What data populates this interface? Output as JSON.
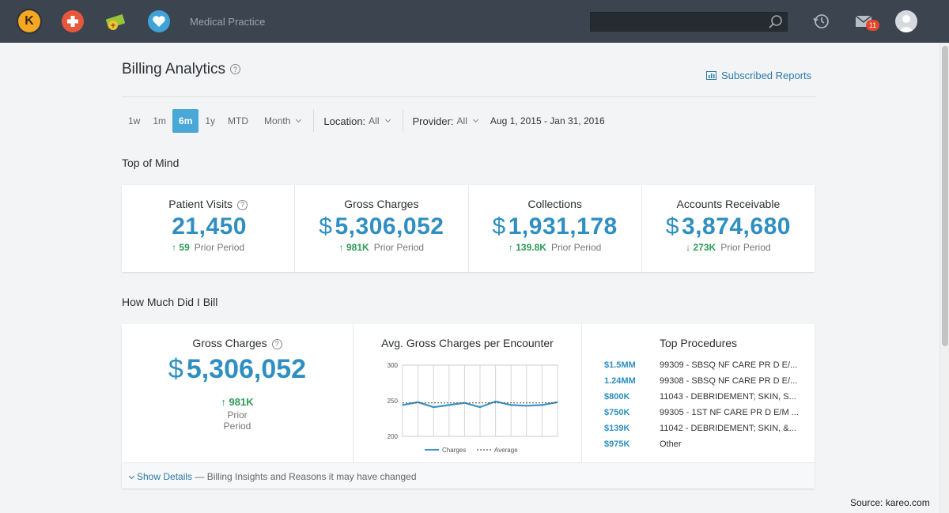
{
  "nav": {
    "practice": "Medical Practice",
    "search": {
      "placeholder": ""
    },
    "mail_count": "11",
    "k_logo": "K"
  },
  "header": {
    "title": "Billing Analytics",
    "help": "?",
    "subscribed_label": "Subscribed Reports"
  },
  "filters": {
    "periods": [
      "1w",
      "1m",
      "6m",
      "1y",
      "MTD"
    ],
    "active_period": "6m",
    "granularity": "Month",
    "location_label": "Location:",
    "location_value": "All",
    "provider_label": "Provider:",
    "provider_value": "All",
    "date_range": "Aug 1, 2015 - Jan 31, 2016"
  },
  "top_of_mind": {
    "title": "Top of Mind",
    "metrics": [
      {
        "label": "Patient Visits",
        "currency": "",
        "value": "21,450",
        "delta": "↑ 59",
        "delta_label": "Prior Period"
      },
      {
        "label": "Gross Charges",
        "currency": "$",
        "value": "5,306,052",
        "delta": "↑ 981K",
        "delta_label": "Prior Period"
      },
      {
        "label": "Collections",
        "currency": "$",
        "value": "1,931,178",
        "delta": "↑ 139.8K",
        "delta_label": "Prior Period"
      },
      {
        "label": "Accounts Receivable",
        "currency": "$",
        "value": "3,874,680",
        "delta": "↓ 273K",
        "delta_label": "Prior Period"
      }
    ]
  },
  "billing": {
    "title": "How Much Did I Bill",
    "gross": {
      "label": "Gross Charges",
      "currency": "$",
      "value": "5,306,052",
      "delta": "↑ 981K",
      "delta_label": "Prior Period"
    },
    "avg_title": "Avg. Gross Charges per Encounter",
    "top_title": "Top Procedures",
    "procedures": [
      {
        "value": "$1.5MM",
        "name": "99309 - SBSQ NF CARE PR D E/..."
      },
      {
        "value": "1.24MM",
        "name": "99308 - SBSQ NF CARE PR D E/..."
      },
      {
        "value": "$800K",
        "name": "11043 - DEBRIDEMENT; SKIN, S..."
      },
      {
        "value": "$750K",
        "name": "99305 - 1ST NF CARE PR D E/M ..."
      },
      {
        "value": "$139K",
        "name": "11042 - DEBRIDEMENT; SKIN, &..."
      },
      {
        "value": "$975K",
        "name": "Other"
      }
    ],
    "show_details": "Show Details",
    "details_text": " — Billing Insights and Reasons it may have changed"
  },
  "chart_data": {
    "type": "line",
    "title": "Avg. Gross Charges per Encounter",
    "x": [
      1,
      2,
      3,
      4,
      5,
      6,
      7,
      8,
      9,
      10,
      11
    ],
    "ylim": [
      200,
      300
    ],
    "yticks": [
      "300",
      "250",
      "200"
    ],
    "grid": true,
    "legend": "bottom",
    "series": [
      {
        "name": "Charges",
        "values": [
          244,
          248,
          241,
          244,
          247,
          241,
          249,
          244,
          243,
          244,
          248
        ],
        "style": "solid"
      },
      {
        "name": "Average",
        "values": [
          247,
          247,
          247,
          247,
          247,
          247,
          247,
          247,
          247,
          247,
          247
        ],
        "style": "dotted"
      }
    ]
  },
  "footer": {
    "source": "Source: kareo.com"
  },
  "colors": {
    "accent": "#2f8fc1",
    "positive": "#2e9b57",
    "nav_bg": "#3c4450",
    "active_tab": "#4aa8d8"
  }
}
